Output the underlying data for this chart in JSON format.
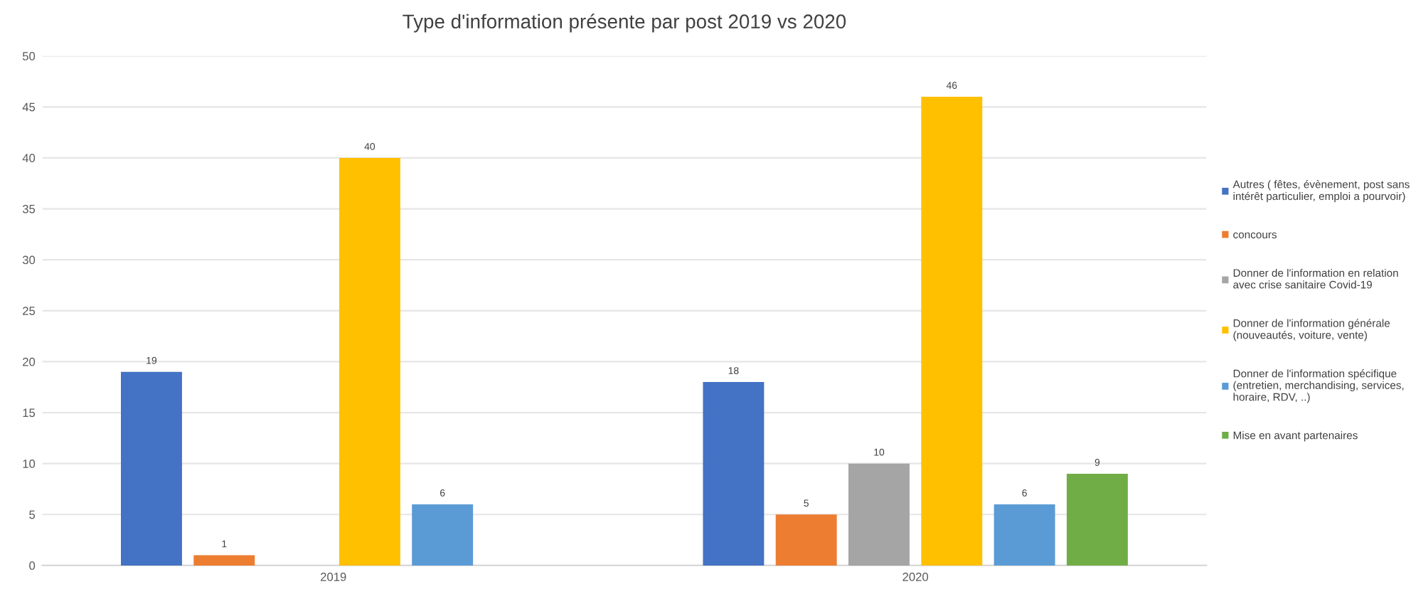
{
  "chart_data": {
    "type": "bar",
    "title": "Type d'information présente par post 2019 vs 2020",
    "categories": [
      "2019",
      "2020"
    ],
    "series": [
      {
        "name": "Autres ( fêtes, évènement, post sans\nintérêt particulier, emploi a pourvoir)",
        "color": "#4472c4",
        "values": [
          19,
          18
        ]
      },
      {
        "name": "concours",
        "color": "#ed7d31",
        "values": [
          1,
          5
        ]
      },
      {
        "name": "Donner de l'information en relation\navec crise sanitaire Covid-19",
        "color": "#a5a5a5",
        "values": [
          null,
          10
        ]
      },
      {
        "name": "Donner de l'information générale\n(nouveautés, voiture, vente)",
        "color": "#ffc000",
        "values": [
          40,
          46
        ]
      },
      {
        "name": "Donner de l'information spécifique\n(entretien, merchandising, services,\nhoraire, RDV, ..)",
        "color": "#5b9bd5",
        "values": [
          6,
          6
        ]
      },
      {
        "name": "Mise en avant partenaires",
        "color": "#70ad47",
        "values": [
          null,
          9
        ]
      }
    ],
    "ylim": [
      0,
      50
    ],
    "yticks": [
      0,
      5,
      10,
      15,
      20,
      25,
      30,
      35,
      40,
      45,
      50
    ],
    "grid": "y",
    "legend": "right",
    "data_labels": true
  }
}
